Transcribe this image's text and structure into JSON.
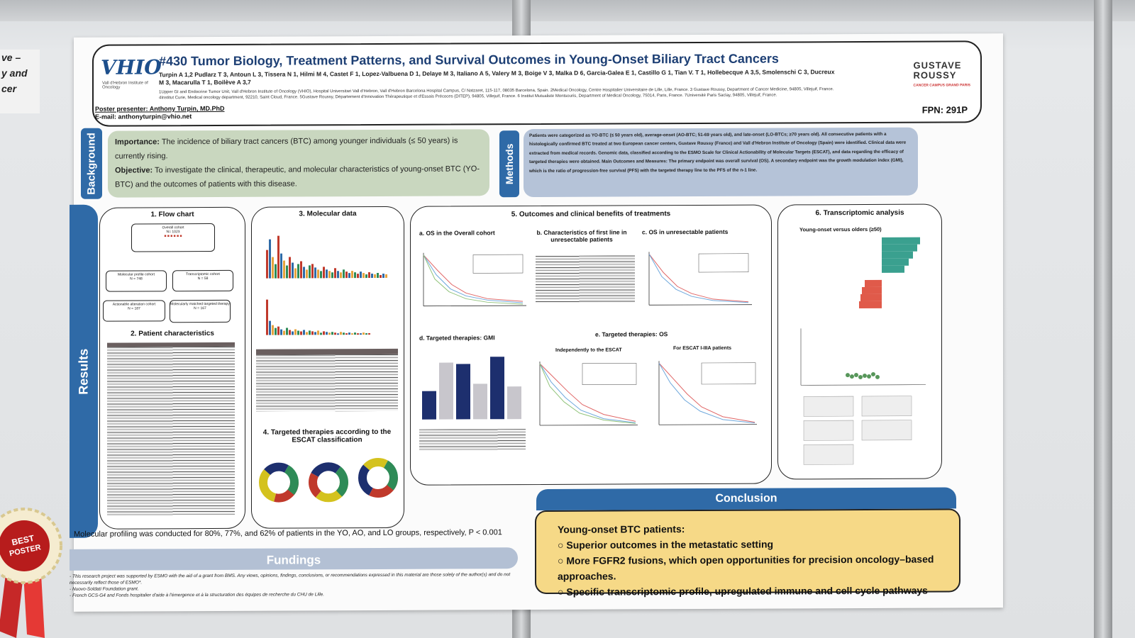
{
  "wall_sign": {
    "lines": [
      "ve –",
      "y and",
      "cer"
    ]
  },
  "header": {
    "logo_vhio": "VHIO",
    "logo_vhio_sub": "Vall d'Hebron Institute of Oncology",
    "title": "#430 Tumor Biology, Treatment Patterns, and Survival Outcomes in Young-Onset Biliary Tract Cancers",
    "authors": "Turpin A 1,2 Pudlarz T 3, Antoun L 3, Tissera N 1, Hilmi M 4, Castet F 1, Lopez-Valbuena D 1, Delaye M 3, Italiano A 5, Valery M 3, Boige V 3, Malka D 6, Garcia-Galea E 1, Castillo G 1, Tian V. T 1, Hollebecque A 3,5, Smolenschi C 3, Ducreux M 3, Macarulla T 1, Boilève A 3,7",
    "affiliations": "1Upper GI and Endocrine Tumor Unit, Vall d'Hebron Institute of Oncology (VHIO), Hospital Universitari Vall d'Hebron, Vall d'Hebron Barcelona Hospital Campus, C/ Natzaret, 115-117, 08035 Barcelona, Spain. 2Medical Oncology, Centre Hospitalier Universitaire de Lille, Lille, France. 3 Gustave Roussy, Department of Cancer Medicine, 94805, Villejuif, France. 4Institut Curie, Medical oncology department, 92210, Saint Cloud, France. 5Gustave Roussy, Département d'Innovation Thérapeutique et d'Essais Précoces (DITEP), 94805, Villejuif, France. 6 Institut Mutualiste Montsouris, Department of Medical Oncology, 75014, Paris, France. 7Université Paris Saclay, 94805, Villejuif, France.",
    "presenter": "Poster presenter: Anthony Turpin, MD.PhD",
    "email": "E-mail: anthonyturpin@vhio.net",
    "logo_gr_line1": "GUSTAVE",
    "logo_gr_line2": "ROUSSY",
    "logo_gr_sub": "CANCER CAMPUS GRAND PARIS",
    "fpn": "FPN: 291P"
  },
  "background": {
    "tab": "Background",
    "importance_label": "Importance:",
    "importance_text": "The incidence of biliary tract cancers (BTC) among younger individuals (≤ 50 years) is currently rising.",
    "objective_label": "Objective:",
    "objective_text": "To investigate the clinical, therapeutic, and molecular characteristics of young-onset BTC (YO-BTC) and the outcomes of patients with this disease."
  },
  "methods": {
    "tab": "Methods",
    "text": "Patients were categorized as YO-BTC (≤ 50 years old), average-onset (AO-BTC; 51-69 years old), and late-onset (LO-BTCs; ≥70 years old). All consecutive patients with a histologically confirmed BTC treated at two European cancer centers, Gustave Roussy (France) and Vall d'Hebron Institute of Oncology (Spain) were identified. Clinical data were extracted from medical records. Genomic data, classified according to the ESMO Scale for Clinical Actionability of Molecular Targets (ESCAT), and data regarding the efficacy of targeted therapies were obtained. Main Outcomes and Measures: The primary endpoint was overall survival (OS). A secondary endpoint was the growth modulation index (GMI), which is the ratio of progression-free survival (PFS) with the targeted therapy line to the PFS of the n-1 line."
  },
  "results": {
    "tab": "Results",
    "s1": "1. Flow chart",
    "s2": "2. Patient characteristics",
    "s3": "3. Molecular data",
    "s4": "4. Targeted therapies according to the ESCAT classification",
    "s5": "5. Outcomes and clinical benefits of treatments",
    "s5a": "a. OS in the Overall cohort",
    "s5b": "b. Characteristics of first line in unresectable patients",
    "s5c": "c. OS in unresectable patients",
    "s5d": "d. Targeted therapies: GMI",
    "s5e": "e. Targeted therapies:  OS",
    "s5e1": "Independently to the ESCAT",
    "s5e2": "For ESCAT I-IIIA patients",
    "s6": "6. Transcriptomic analysis",
    "s6sub": "Young-onset versus olders (≥50)",
    "flow": {
      "n1a": "Overall cohort",
      "n1b": "N= 1023",
      "n2": "Molecular profile cohort",
      "n2b": "N = 748",
      "n3": "Transcriptomic cohort",
      "n3b": "N = 58",
      "n4": "Actionable alteration cohort",
      "n4b": "N = 187",
      "n5": "Molecularly matched targeted therapy",
      "n5b": "N = 167"
    }
  },
  "molecular_note": "Molecular profiling was conducted for 80%, 77%, and 62% of patients in the YO, AO, and LO groups, respectively, P < 0.001",
  "fundings": {
    "title": "Fundings",
    "lines": [
      "- This research project was supported by ESMO with the aid of a grant from BMS. Any views, opinions, findings, conclusions, or recommendations expressed in this material are those solely of the author(s) and do not necessarily reflect those of ESMO*.",
      "- Nuovo-Soldati Foundation grant.",
      "- French GCS-G4 and Fonds hospitalier d'aide à l'émergence et à la structuration des équipes de recherche du CHU de Lille."
    ]
  },
  "conclusion": {
    "title": "Conclusion",
    "lead": "Young-onset BTC patients:",
    "items": [
      "Superior outcomes in the metastatic setting",
      "More FGFR2 fusions, which open opportunities for precision oncology–based approaches.",
      "Specific transcriptomic profile, upregulated immune and cell cycle pathways"
    ]
  },
  "rosette": {
    "line1": "BEST",
    "line2": "POSTER"
  },
  "colors": {
    "accent": "#2f6aa7",
    "bg_box": "#c9d7bf",
    "methods_box": "#b5c3d8",
    "conclusion": "#f6d987",
    "navy": "#1d2f6e",
    "grey_bar": "#b9b7bd"
  }
}
